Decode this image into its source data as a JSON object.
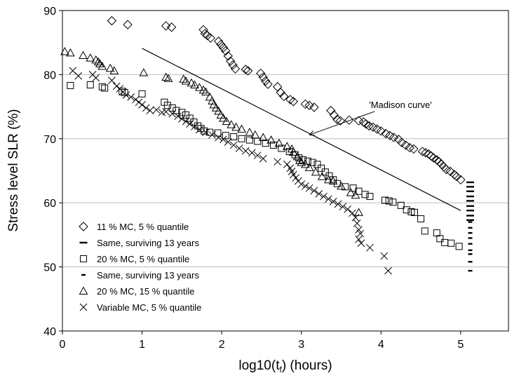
{
  "chart_data": {
    "type": "scatter",
    "title": "",
    "xlabel_main": "log10(t",
    "xlabel_sub": "f",
    "xlabel_tail": ") (hours)",
    "ylabel": "Stress level SLR (%)",
    "xlim": [
      0,
      5.6
    ],
    "ylim": [
      40,
      90
    ],
    "xticks": [
      "0",
      "1",
      "2",
      "3",
      "4",
      "5"
    ],
    "yticks": [
      "40",
      "50",
      "60",
      "70",
      "80",
      "90"
    ],
    "grid": "horizontal",
    "legend_position": "bottom-left",
    "series": [
      {
        "name": "11 % MC, 5 % quantile",
        "marker": "diamond",
        "points": [
          [
            0.62,
            88.4
          ],
          [
            0.82,
            87.8
          ],
          [
            1.3,
            87.6
          ],
          [
            1.37,
            87.4
          ],
          [
            1.77,
            87.0
          ],
          [
            1.79,
            86.4
          ],
          [
            1.82,
            86.1
          ],
          [
            1.86,
            85.7
          ],
          [
            1.96,
            85.2
          ],
          [
            1.99,
            84.7
          ],
          [
            2.02,
            84.2
          ],
          [
            2.05,
            83.7
          ],
          [
            2.08,
            82.9
          ],
          [
            2.11,
            82.1
          ],
          [
            2.14,
            81.5
          ],
          [
            2.17,
            80.9
          ],
          [
            2.3,
            80.8
          ],
          [
            2.33,
            80.6
          ],
          [
            2.49,
            80.2
          ],
          [
            2.52,
            79.6
          ],
          [
            2.55,
            79.0
          ],
          [
            2.58,
            78.5
          ],
          [
            2.7,
            78.1
          ],
          [
            2.74,
            77.2
          ],
          [
            2.78,
            76.6
          ],
          [
            2.86,
            76.1
          ],
          [
            2.9,
            75.8
          ],
          [
            3.05,
            75.4
          ],
          [
            3.1,
            75.2
          ],
          [
            3.16,
            74.9
          ],
          [
            3.37,
            74.4
          ],
          [
            3.41,
            73.7
          ],
          [
            3.45,
            73.0
          ],
          [
            3.49,
            72.8
          ],
          [
            3.6,
            72.9
          ],
          [
            3.72,
            72.8
          ],
          [
            3.78,
            72.6
          ],
          [
            3.81,
            72.3
          ],
          [
            3.85,
            72.0
          ],
          [
            3.9,
            71.8
          ],
          [
            3.95,
            71.5
          ],
          [
            4.0,
            71.2
          ],
          [
            4.06,
            70.8
          ],
          [
            4.11,
            70.5
          ],
          [
            4.16,
            70.2
          ],
          [
            4.22,
            69.9
          ],
          [
            4.26,
            69.4
          ],
          [
            4.31,
            69.0
          ],
          [
            4.36,
            68.6
          ],
          [
            4.41,
            68.4
          ],
          [
            4.52,
            68.0
          ],
          [
            4.56,
            67.8
          ],
          [
            4.6,
            67.6
          ],
          [
            4.63,
            67.3
          ],
          [
            4.66,
            67.0
          ],
          [
            4.7,
            66.7
          ],
          [
            4.73,
            66.4
          ],
          [
            4.76,
            66.0
          ],
          [
            4.79,
            65.6
          ],
          [
            4.82,
            65.2
          ],
          [
            4.87,
            64.9
          ],
          [
            4.92,
            64.4
          ],
          [
            4.95,
            64.1
          ],
          [
            5.0,
            63.6
          ]
        ]
      },
      {
        "name": "Same, surviving 13 years",
        "marker": "dash-long",
        "points": [
          [
            5.12,
            63.2
          ],
          [
            5.12,
            62.5
          ],
          [
            5.12,
            61.8
          ],
          [
            5.12,
            61.0
          ],
          [
            5.12,
            60.3
          ],
          [
            5.12,
            59.5
          ],
          [
            5.12,
            58.8
          ],
          [
            5.12,
            58.0
          ],
          [
            5.12,
            57.3
          ]
        ]
      },
      {
        "name": "20 % MC, 5 % quantile",
        "marker": "square",
        "points": [
          [
            0.1,
            78.3
          ],
          [
            0.35,
            78.4
          ],
          [
            0.5,
            78.1
          ],
          [
            0.53,
            77.9
          ],
          [
            0.75,
            77.4
          ],
          [
            0.78,
            77.2
          ],
          [
            1.0,
            77.0
          ],
          [
            1.28,
            75.7
          ],
          [
            1.32,
            75.2
          ],
          [
            1.38,
            74.8
          ],
          [
            1.43,
            74.4
          ],
          [
            1.5,
            74.1
          ],
          [
            1.55,
            73.7
          ],
          [
            1.6,
            73.2
          ],
          [
            1.65,
            72.6
          ],
          [
            1.7,
            72.0
          ],
          [
            1.74,
            71.6
          ],
          [
            1.78,
            71.2
          ],
          [
            1.85,
            71.0
          ],
          [
            1.95,
            70.9
          ],
          [
            2.05,
            70.5
          ],
          [
            2.15,
            70.3
          ],
          [
            2.25,
            70.0
          ],
          [
            2.35,
            69.8
          ],
          [
            2.45,
            69.6
          ],
          [
            2.55,
            69.3
          ],
          [
            2.65,
            69.0
          ],
          [
            2.75,
            68.5
          ],
          [
            2.85,
            68.0
          ],
          [
            2.92,
            67.5
          ],
          [
            2.97,
            67.0
          ],
          [
            3.02,
            66.7
          ],
          [
            3.08,
            66.5
          ],
          [
            3.14,
            66.3
          ],
          [
            3.2,
            66.0
          ],
          [
            3.25,
            65.4
          ],
          [
            3.3,
            64.8
          ],
          [
            3.35,
            64.2
          ],
          [
            3.4,
            63.6
          ],
          [
            3.45,
            63.0
          ],
          [
            3.55,
            62.5
          ],
          [
            3.65,
            62.3
          ],
          [
            3.72,
            61.8
          ],
          [
            3.8,
            61.3
          ],
          [
            3.86,
            61.0
          ],
          [
            4.05,
            60.4
          ],
          [
            4.1,
            60.3
          ],
          [
            4.15,
            60.1
          ],
          [
            4.25,
            59.6
          ],
          [
            4.32,
            58.9
          ],
          [
            4.38,
            58.6
          ],
          [
            4.42,
            58.5
          ],
          [
            4.5,
            57.5
          ],
          [
            4.55,
            55.6
          ],
          [
            4.7,
            55.3
          ],
          [
            4.74,
            54.4
          ],
          [
            4.8,
            53.8
          ],
          [
            4.88,
            53.7
          ],
          [
            4.98,
            53.2
          ]
        ]
      },
      {
        "name": "Same, surviving 13 years",
        "marker": "dash-short",
        "points": [
          [
            5.12,
            57.0
          ],
          [
            5.12,
            56.1
          ],
          [
            5.12,
            55.3
          ],
          [
            5.12,
            54.5
          ],
          [
            5.12,
            53.6
          ],
          [
            5.12,
            52.6
          ],
          [
            5.12,
            52.0
          ],
          [
            5.12,
            50.8
          ],
          [
            5.12,
            49.4
          ]
        ]
      },
      {
        "name": "20 % MC, 15 % quantile",
        "marker": "triangle",
        "points": [
          [
            0.03,
            83.6
          ],
          [
            0.1,
            83.4
          ],
          [
            0.26,
            83.0
          ],
          [
            0.35,
            82.6
          ],
          [
            0.42,
            82.3
          ],
          [
            0.45,
            82.0
          ],
          [
            0.47,
            81.7
          ],
          [
            0.5,
            81.3
          ],
          [
            0.6,
            81.0
          ],
          [
            0.65,
            80.6
          ],
          [
            1.02,
            80.3
          ],
          [
            1.3,
            79.6
          ],
          [
            1.33,
            79.4
          ],
          [
            1.52,
            79.3
          ],
          [
            1.55,
            79.0
          ],
          [
            1.62,
            78.7
          ],
          [
            1.66,
            78.4
          ],
          [
            1.72,
            78.0
          ],
          [
            1.77,
            77.6
          ],
          [
            1.8,
            77.3
          ],
          [
            1.85,
            76.5
          ],
          [
            1.88,
            75.9
          ],
          [
            1.9,
            75.3
          ],
          [
            1.93,
            74.8
          ],
          [
            1.96,
            74.3
          ],
          [
            1.99,
            73.7
          ],
          [
            2.02,
            73.2
          ],
          [
            2.06,
            72.7
          ],
          [
            2.12,
            72.2
          ],
          [
            2.18,
            71.8
          ],
          [
            2.25,
            71.5
          ],
          [
            2.35,
            71.0
          ],
          [
            2.42,
            70.6
          ],
          [
            2.52,
            70.2
          ],
          [
            2.62,
            69.8
          ],
          [
            2.72,
            69.3
          ],
          [
            2.82,
            68.8
          ],
          [
            2.88,
            68.4
          ],
          [
            2.9,
            67.9
          ],
          [
            2.95,
            67.2
          ],
          [
            2.98,
            66.6
          ],
          [
            3.0,
            66.3
          ],
          [
            3.05,
            66.0
          ],
          [
            3.1,
            65.5
          ],
          [
            3.18,
            64.8
          ],
          [
            3.26,
            64.1
          ],
          [
            3.34,
            63.6
          ],
          [
            3.4,
            63.4
          ],
          [
            3.5,
            62.6
          ],
          [
            3.62,
            61.6
          ],
          [
            3.68,
            61.2
          ],
          [
            3.72,
            58.5
          ]
        ]
      },
      {
        "name": "Variable MC, 5 % quantile",
        "marker": "cross",
        "points": [
          [
            0.13,
            80.6
          ],
          [
            0.2,
            79.8
          ],
          [
            0.38,
            80.0
          ],
          [
            0.42,
            79.5
          ],
          [
            0.62,
            79.1
          ],
          [
            0.68,
            78.2
          ],
          [
            0.72,
            77.8
          ],
          [
            0.76,
            77.3
          ],
          [
            0.8,
            76.8
          ],
          [
            0.86,
            76.5
          ],
          [
            0.92,
            76.1
          ],
          [
            0.96,
            75.7
          ],
          [
            1.0,
            75.3
          ],
          [
            1.05,
            74.8
          ],
          [
            1.1,
            74.4
          ],
          [
            1.18,
            74.5
          ],
          [
            1.25,
            74.1
          ],
          [
            1.3,
            74.2
          ],
          [
            1.38,
            73.9
          ],
          [
            1.45,
            73.5
          ],
          [
            1.5,
            73.1
          ],
          [
            1.55,
            72.7
          ],
          [
            1.6,
            72.3
          ],
          [
            1.66,
            71.9
          ],
          [
            1.72,
            71.4
          ],
          [
            1.8,
            71.0
          ],
          [
            1.88,
            70.6
          ],
          [
            1.96,
            70.2
          ],
          [
            2.02,
            69.9
          ],
          [
            2.08,
            69.5
          ],
          [
            2.15,
            69.0
          ],
          [
            2.22,
            68.5
          ],
          [
            2.3,
            68.1
          ],
          [
            2.38,
            67.8
          ],
          [
            2.45,
            67.4
          ],
          [
            2.52,
            66.9
          ],
          [
            2.7,
            66.4
          ],
          [
            2.82,
            66.0
          ],
          [
            2.86,
            65.4
          ],
          [
            2.88,
            64.9
          ],
          [
            2.9,
            64.4
          ],
          [
            2.93,
            63.9
          ],
          [
            2.96,
            63.4
          ],
          [
            3.0,
            62.9
          ],
          [
            3.05,
            62.6
          ],
          [
            3.1,
            62.3
          ],
          [
            3.16,
            61.9
          ],
          [
            3.22,
            61.4
          ],
          [
            3.28,
            61.0
          ],
          [
            3.34,
            60.6
          ],
          [
            3.4,
            60.2
          ],
          [
            3.46,
            59.8
          ],
          [
            3.52,
            59.4
          ],
          [
            3.58,
            59.0
          ],
          [
            3.64,
            58.4
          ],
          [
            3.68,
            57.7
          ],
          [
            3.7,
            56.8
          ],
          [
            3.72,
            55.8
          ],
          [
            3.74,
            55.2
          ],
          [
            3.72,
            54.3
          ],
          [
            3.75,
            53.7
          ],
          [
            3.86,
            53.0
          ],
          [
            4.04,
            51.7
          ],
          [
            4.09,
            49.4
          ]
        ]
      }
    ],
    "reference_line": {
      "name": "'Madison curve'",
      "x": [
        1.0,
        5.0
      ],
      "y": [
        84.1,
        58.8
      ]
    },
    "annotation": {
      "text": "'Madison curve'",
      "point": [
        3.1,
        70.6
      ],
      "text_at": [
        3.85,
        74.8
      ]
    }
  }
}
